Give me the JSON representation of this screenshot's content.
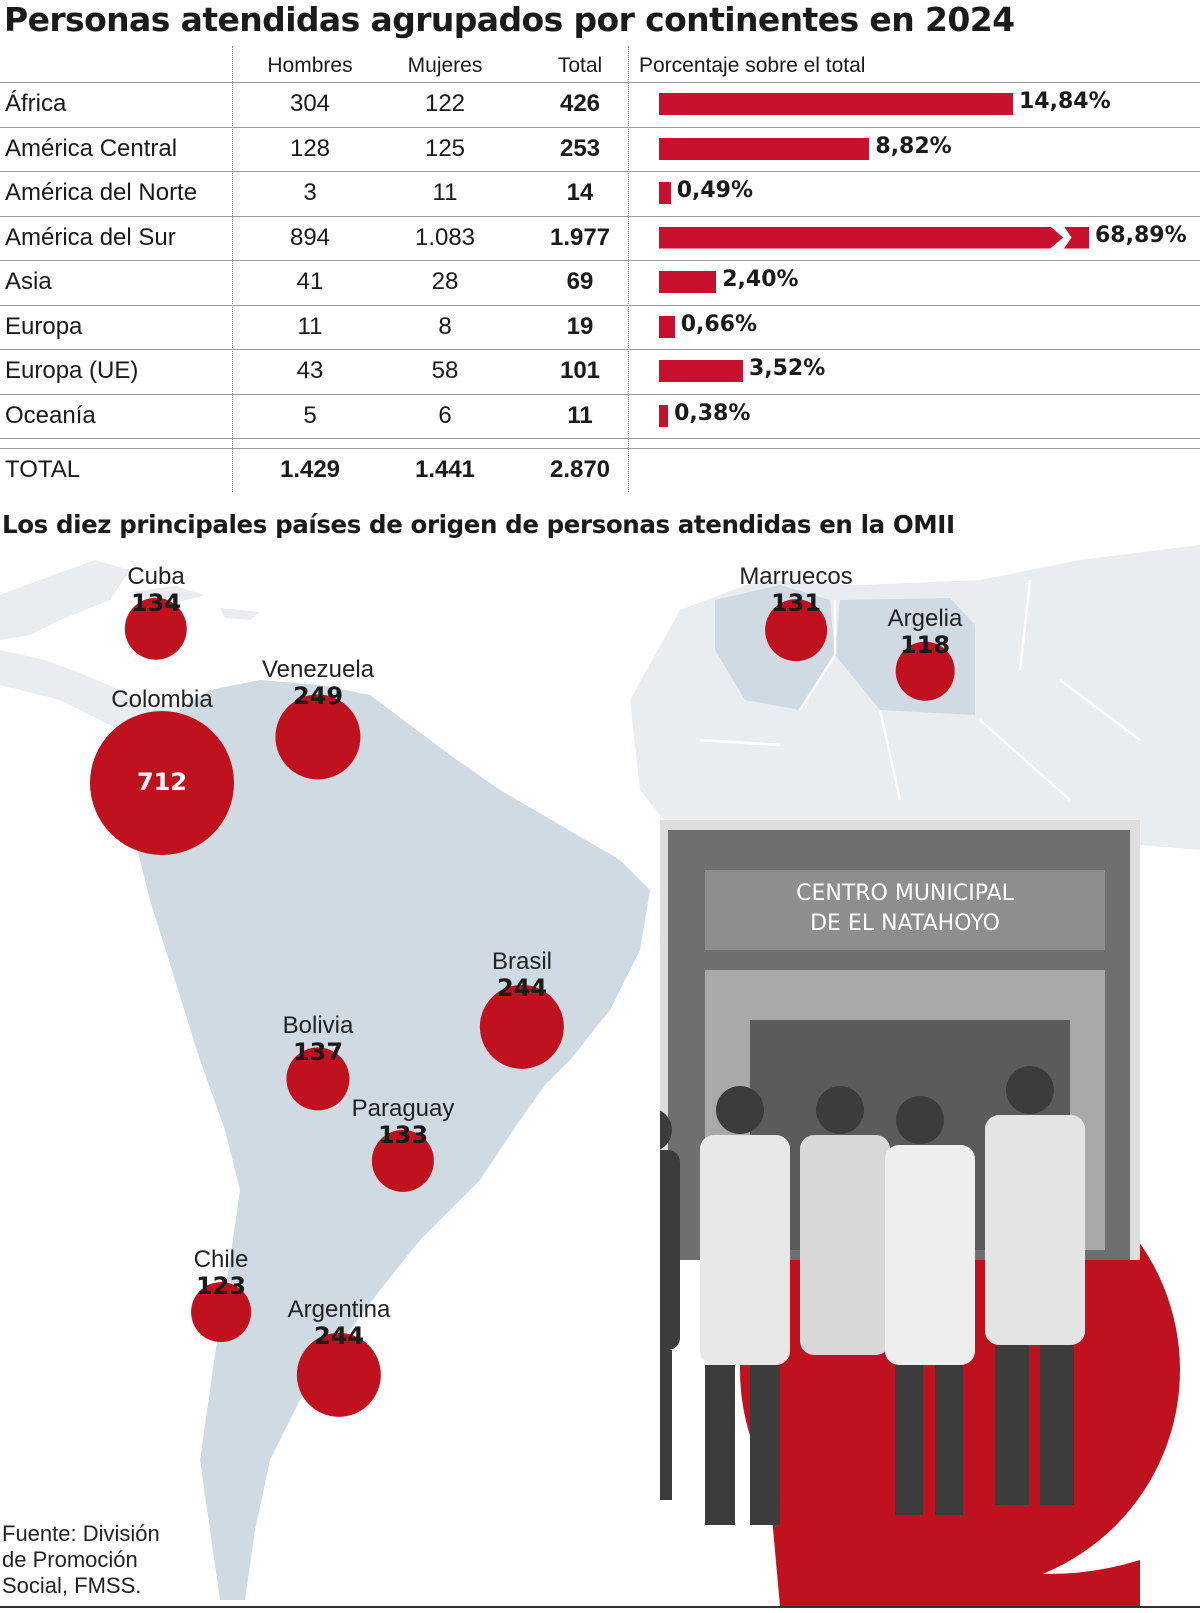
{
  "title": "Personas atendidas agrupados por continentes en 2024",
  "table": {
    "headers": {
      "men": "Hombres",
      "women": "Mujeres",
      "total": "Total",
      "pct": "Porcentaje sobre el total"
    },
    "rows": [
      {
        "name": "África",
        "men": "304",
        "women": "122",
        "total": "426",
        "pct": "14,84%"
      },
      {
        "name": "América Central",
        "men": "128",
        "women": "125",
        "total": "253",
        "pct": "8,82%"
      },
      {
        "name": "América del Norte",
        "men": "3",
        "women": "11",
        "total": "14",
        "pct": "0,49%"
      },
      {
        "name": "América del Sur",
        "men": "894",
        "women": "1.083",
        "total": "1.977",
        "pct": "68,89%"
      },
      {
        "name": "Asia",
        "men": "41",
        "women": "28",
        "total": "69",
        "pct": "2,40%"
      },
      {
        "name": "Europa",
        "men": "11",
        "women": "8",
        "total": "19",
        "pct": "0,66%"
      },
      {
        "name": "Europa (UE)",
        "men": "43",
        "women": "58",
        "total": "101",
        "pct": "3,52%"
      },
      {
        "name": "Oceanía",
        "men": "5",
        "women": "6",
        "total": "11",
        "pct": "0,38%"
      }
    ],
    "total_row": {
      "name": "TOTAL",
      "men": "1.429",
      "women": "1.441",
      "total": "2.870"
    }
  },
  "chart_data": [
    {
      "type": "bar",
      "orientation": "horizontal",
      "categories": [
        "África",
        "América Central",
        "América del Norte",
        "América del Sur",
        "Asia",
        "Europa",
        "Europa (UE)",
        "Oceanía"
      ],
      "values": [
        14.84,
        8.82,
        0.49,
        68.89,
        2.4,
        0.66,
        3.52,
        0.38
      ],
      "broken_axis_category": "América del Sur",
      "unit": "%"
    },
    {
      "type": "scatter",
      "kind": "proportional-bubble-map",
      "points": [
        {
          "country": "Colombia",
          "value": 712
        },
        {
          "country": "Venezuela",
          "value": 249
        },
        {
          "country": "Brasil",
          "value": 244
        },
        {
          "country": "Argentina",
          "value": 244
        },
        {
          "country": "Bolivia",
          "value": 137
        },
        {
          "country": "Cuba",
          "value": 134
        },
        {
          "country": "Paraguay",
          "value": 133
        },
        {
          "country": "Marruecos",
          "value": 131
        },
        {
          "country": "Chile",
          "value": 123
        },
        {
          "country": "Argelia",
          "value": 118
        }
      ]
    }
  ],
  "map_title": "Los diez principales países de origen de personas atendidas en la OMII",
  "photo_sign": {
    "line1": "CENTRO MUNICIPAL",
    "line2": "DE EL NATAHOYO"
  },
  "source": {
    "line1": "Fuente: División",
    "line2": "de Promoción",
    "line3": "Social, FMSS."
  },
  "colors": {
    "accent": "#c8102e",
    "land": "#d0dae3",
    "land_light": "#eaedf0"
  }
}
